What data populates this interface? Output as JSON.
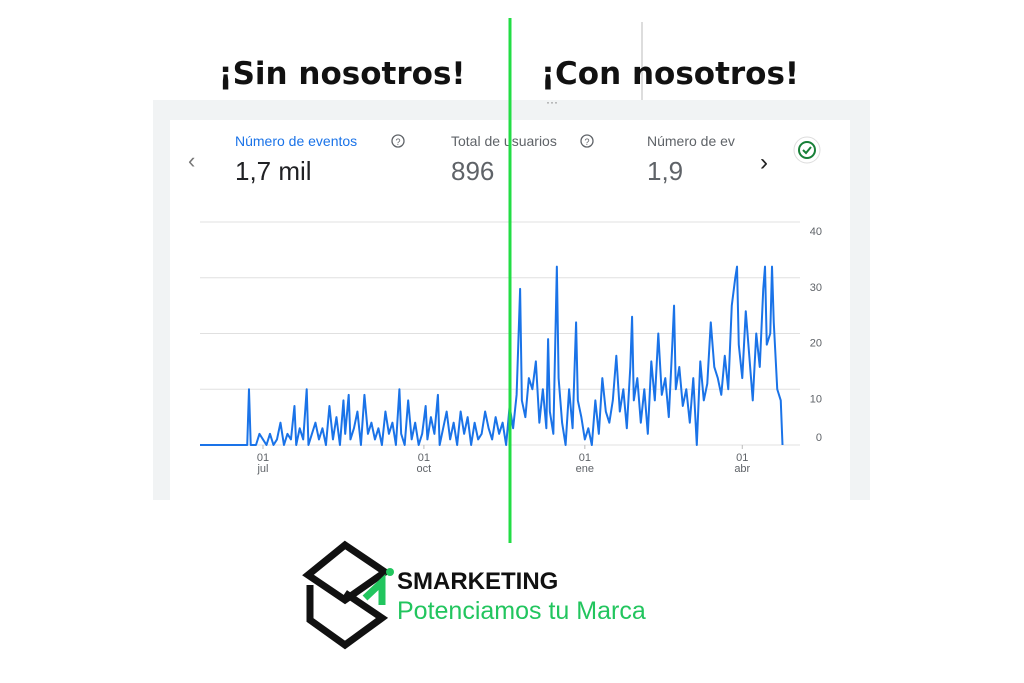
{
  "headings": {
    "left": "¡Sin nosotros!",
    "right": "¡Con nosotros!"
  },
  "metrics": [
    {
      "label": "Número de eventos",
      "value": "1,7 mil"
    },
    {
      "label": "Total de usuarios",
      "value": "896"
    },
    {
      "label": "Número de ev",
      "value": "1,9"
    }
  ],
  "brand": {
    "name": "SMARKETING",
    "tagline": "Potenciamos tu Marca"
  },
  "chart_data": {
    "type": "line",
    "x": [
      -36,
      -9,
      -8,
      -7,
      -4,
      -2,
      0,
      2,
      4,
      6,
      8,
      10,
      12,
      14,
      16,
      18,
      19,
      21,
      23,
      25,
      26,
      28,
      30,
      32,
      34,
      36,
      38,
      40,
      42,
      44,
      46,
      47,
      49,
      50,
      52,
      54,
      56,
      58,
      60,
      62,
      64,
      66,
      68,
      70,
      72,
      74,
      76,
      78,
      79,
      81,
      83,
      85,
      87,
      89,
      91,
      93,
      94,
      96,
      98,
      100,
      101,
      103,
      105,
      107,
      109,
      111,
      113,
      115,
      117,
      119,
      121,
      123,
      125,
      127,
      129,
      131,
      133,
      135,
      137,
      139,
      141,
      143,
      145,
      147,
      148,
      150,
      152,
      154,
      156,
      158,
      160,
      162,
      163,
      164,
      166,
      168,
      169,
      171,
      173,
      175,
      177,
      179,
      180,
      182,
      184,
      186,
      188,
      190,
      192,
      194,
      196,
      198,
      200,
      202,
      204,
      206,
      208,
      210,
      211,
      212,
      214,
      216,
      218,
      220,
      222,
      224,
      226,
      228,
      230,
      232,
      234,
      235,
      236,
      238,
      240,
      242,
      244,
      246,
      248,
      250,
      252,
      254,
      256,
      258,
      260,
      262,
      264,
      266,
      268,
      270,
      271,
      272,
      274,
      276,
      278,
      280,
      282,
      284,
      286,
      287,
      288,
      290,
      291,
      292,
      294,
      296,
      297
    ],
    "values": [
      0,
      0,
      10,
      0,
      0,
      2,
      1,
      0,
      2,
      0,
      1,
      4,
      0,
      2,
      1,
      7,
      0,
      3,
      1,
      10,
      0,
      2,
      4,
      1,
      3,
      0,
      7,
      1,
      5,
      0,
      8,
      2,
      9,
      1,
      3,
      6,
      0,
      9,
      2,
      4,
      1,
      3,
      0,
      6,
      2,
      4,
      0,
      10,
      2,
      0,
      8,
      1,
      4,
      0,
      2,
      7,
      1,
      5,
      2,
      9,
      0,
      3,
      6,
      1,
      4,
      0,
      6,
      2,
      5,
      0,
      4,
      1,
      2,
      6,
      3,
      1,
      5,
      2,
      4,
      0,
      7,
      3,
      9,
      28,
      8,
      5,
      12,
      10,
      15,
      4,
      10,
      3,
      19,
      6,
      2,
      32,
      12,
      4,
      0,
      10,
      3,
      22,
      8,
      5,
      1,
      3,
      0,
      8,
      2,
      12,
      6,
      4,
      8,
      16,
      6,
      10,
      3,
      14,
      23,
      8,
      12,
      4,
      10,
      2,
      15,
      8,
      20,
      9,
      12,
      5,
      18,
      25,
      10,
      14,
      7,
      10,
      4,
      12,
      0,
      15,
      8,
      11,
      22,
      14,
      12,
      9,
      16,
      10,
      25,
      30,
      32,
      18,
      12,
      24,
      16,
      8,
      20,
      14,
      28,
      32,
      18,
      20,
      32,
      22,
      10,
      8,
      0
    ],
    "color": "#1a73e8",
    "xlim": [
      -36,
      299
    ],
    "xticks": [
      {
        "value": 0,
        "label": "01\njul"
      },
      {
        "value": 92,
        "label": "01\noct"
      },
      {
        "value": 184,
        "label": "01\nene"
      },
      {
        "value": 274,
        "label": "01\nabr"
      }
    ],
    "ylim": [
      0,
      40
    ],
    "yticks": [
      0,
      10,
      20,
      30,
      40
    ],
    "grid": true
  }
}
